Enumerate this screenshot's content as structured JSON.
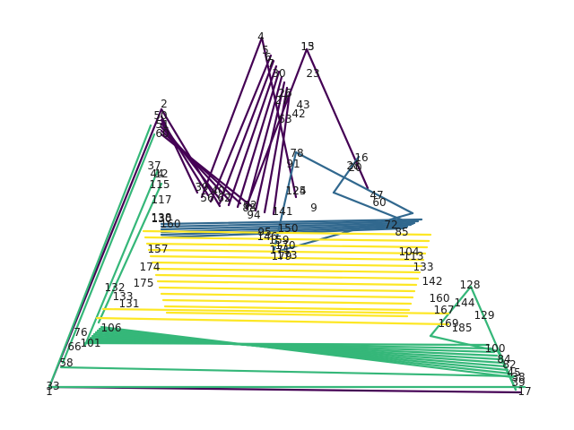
{
  "palette": {
    "purple": "#440154",
    "blue": "#31688e",
    "green": "#35b779",
    "yellow": "#fde725",
    "label": "#1a1a1a",
    "background": "#ffffff"
  },
  "node_labels": {
    "peak_left": [
      "2",
      "50",
      "51",
      "60"
    ],
    "peak_top": [
      "4",
      "5",
      "6",
      "7"
    ],
    "peak_top2": [
      "13",
      "15",
      "23",
      "30",
      "26",
      "27",
      "43",
      "42",
      "63"
    ],
    "peak_mid": [
      "78",
      "91",
      "16",
      "28",
      "20",
      "124",
      "125",
      "141",
      "9"
    ],
    "left_side": [
      "37",
      "44",
      "12",
      "115",
      "117",
      "138",
      "157",
      "174",
      "175",
      "132",
      "133",
      "131",
      "106",
      "76",
      "101",
      "66",
      "58",
      "33",
      "1"
    ],
    "cluster_center": [
      "39",
      "40",
      "56",
      "62",
      "88",
      "92",
      "94",
      "95",
      "146",
      "150",
      "159",
      "170",
      "171",
      "173",
      "179",
      "130",
      "160"
    ],
    "right_side": [
      "47",
      "60",
      "72",
      "85",
      "104",
      "113",
      "133",
      "142",
      "160",
      "167",
      "169",
      "185",
      "128",
      "144",
      "129",
      "100",
      "84",
      "82",
      "45",
      "38",
      "39",
      "17"
    ]
  }
}
